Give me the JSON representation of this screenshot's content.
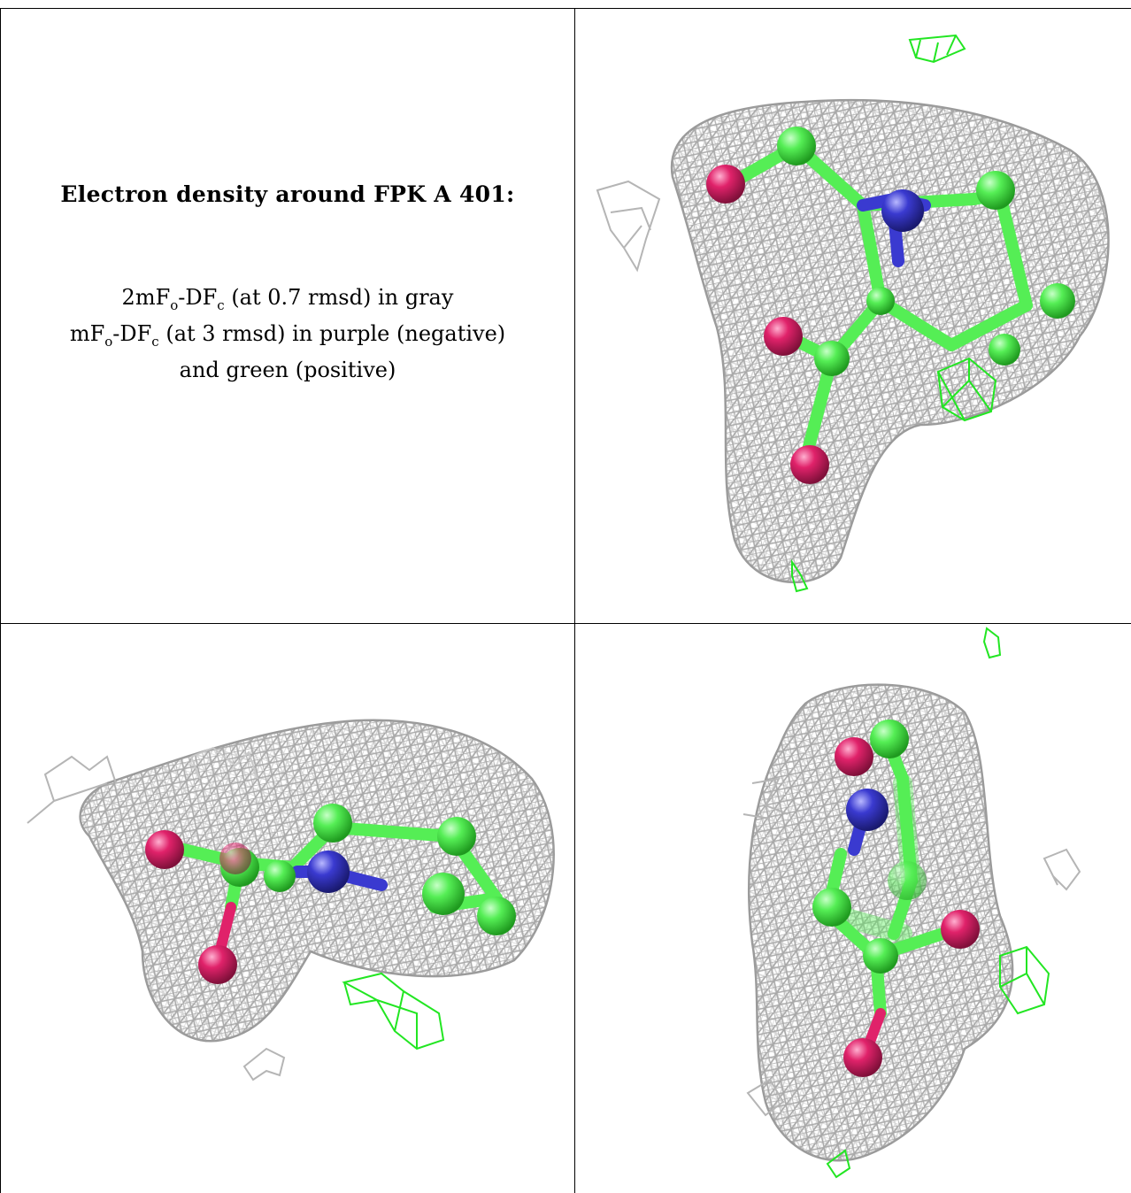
{
  "caption": {
    "title": "Electron density around FPK A 401:",
    "line1_prefix": "2mF",
    "line1_sub_o": "o",
    "line1_mid": "-DF",
    "line1_sub_c": "c",
    "line1_suffix": " (at 0.7 rmsd) in gray",
    "line2_prefix": "mF",
    "line2_sub_o": "o",
    "line2_mid": "-DF",
    "line2_sub_c": "c",
    "line2_suffix": " (at 3 rmsd) in purple (negative)",
    "line3": "and green (positive)"
  },
  "colors": {
    "mesh_2fofc": "#9a9a9a",
    "mesh_fofc_positive": "#22e622",
    "carbon": "#55ee55",
    "nitrogen": "#3a3ad0",
    "oxygen": "#e0226a"
  },
  "panels": [
    "view-top-right",
    "view-bottom-left",
    "view-bottom-right"
  ]
}
